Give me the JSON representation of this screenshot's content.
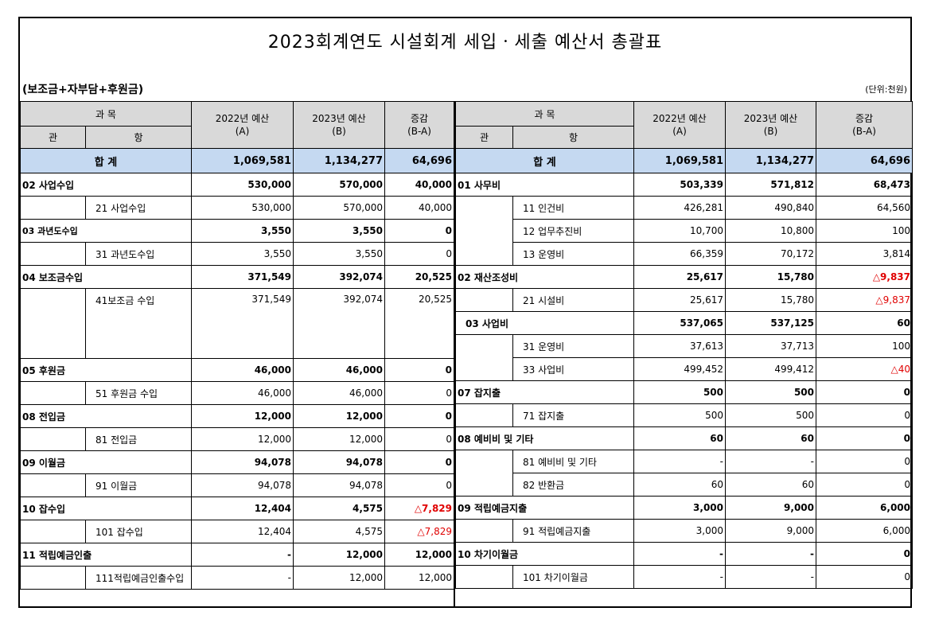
{
  "title": "2023회계연도 시설회계 세입ㆍ세출 예산서 총괄표",
  "subtitle": "(보조금+자부담+후원금)",
  "unit": "(단위:천원)",
  "headers": {
    "gwamok": "과 목",
    "gwan": "관",
    "hang": "항",
    "prev_budget": "2022년 예산",
    "prev_mark": "(A)",
    "curr_budget": "2023년 예산",
    "curr_mark": "(B)",
    "diff": "증감",
    "diff_mark": "(B-A)"
  },
  "total": {
    "label": "합 계",
    "prev": "1,069,581",
    "curr": "1,134,277",
    "diff": "64,696"
  },
  "revenue": [
    {
      "gwan": "02 사업수입",
      "prev": "530,000",
      "curr": "570,000",
      "diff": "40,000",
      "items": [
        {
          "hang": "21 사업수입",
          "prev": "530,000",
          "curr": "570,000",
          "diff": "40,000"
        }
      ]
    },
    {
      "gwan": "03 과년도수입",
      "prev": "3,550",
      "curr": "3,550",
      "diff": "0",
      "items": [
        {
          "hang": "31 과년도수입",
          "prev": "3,550",
          "curr": "3,550",
          "diff": "0"
        }
      ]
    },
    {
      "gwan": "04 보조금수입",
      "prev": "371,549",
      "curr": "392,074",
      "diff": "20,525",
      "items": [
        {
          "hang": "41보조금 수입",
          "prev": "371,549",
          "curr": "392,074",
          "diff": "20,525"
        }
      ]
    },
    {
      "gwan": "05 후원금",
      "prev": "46,000",
      "curr": "46,000",
      "diff": "0",
      "items": [
        {
          "hang": "51 후원금 수입",
          "prev": "46,000",
          "curr": "46,000",
          "diff": "0"
        }
      ]
    },
    {
      "gwan": "08 전입금",
      "prev": "12,000",
      "curr": "12,000",
      "diff": "0",
      "items": [
        {
          "hang": "81 전입금",
          "prev": "12,000",
          "curr": "12,000",
          "diff": "0"
        }
      ]
    },
    {
      "gwan": "09 이월금",
      "prev": "94,078",
      "curr": "94,078",
      "diff": "0",
      "items": [
        {
          "hang": "91 이월금",
          "prev": "94,078",
          "curr": "94,078",
          "diff": "0"
        }
      ]
    },
    {
      "gwan": "10 잡수입",
      "prev": "12,404",
      "curr": "4,575",
      "diff": "△7,829",
      "items": [
        {
          "hang": "101 잡수입",
          "prev": "12,404",
          "curr": "4,575",
          "diff": "△7,829"
        }
      ]
    },
    {
      "gwan": "11 적립예금인출",
      "prev": "-",
      "curr": "12,000",
      "diff": "12,000",
      "items": [
        {
          "hang": "111적립예금인출수입",
          "prev": "-",
          "curr": "12,000",
          "diff": "12,000"
        }
      ]
    }
  ],
  "expense": [
    {
      "gwan": "01 사무비",
      "prev": "503,339",
      "curr": "571,812",
      "diff": "68,473",
      "items": [
        {
          "hang": "11 인건비",
          "prev": "426,281",
          "curr": "490,840",
          "diff": "64,560"
        },
        {
          "hang": "12 업무추진비",
          "prev": "10,700",
          "curr": "10,800",
          "diff": "100"
        },
        {
          "hang": "13 운영비",
          "prev": "66,359",
          "curr": "70,172",
          "diff": "3,814"
        }
      ]
    },
    {
      "gwan": "02 재산조성비",
      "prev": "25,617",
      "curr": "15,780",
      "diff": "△9,837",
      "items": [
        {
          "hang": "21 시설비",
          "prev": "25,617",
          "curr": "15,780",
          "diff": "△9,837"
        }
      ]
    },
    {
      "gwan": "03 사업비",
      "prev": "537,065",
      "curr": "537,125",
      "diff": "60",
      "items": [
        {
          "hang": "31 운영비",
          "prev": "37,613",
          "curr": "37,713",
          "diff": "100"
        },
        {
          "hang": "33 사업비",
          "prev": "499,452",
          "curr": "499,412",
          "diff": "△40"
        }
      ]
    },
    {
      "gwan": "07 잡지출",
      "prev": "500",
      "curr": "500",
      "diff": "0",
      "items": [
        {
          "hang": "71 잡지출",
          "prev": "500",
          "curr": "500",
          "diff": "0"
        }
      ]
    },
    {
      "gwan": "08 예비비 및 기타",
      "prev": "60",
      "curr": "60",
      "diff": "0",
      "items": [
        {
          "hang": "81 예비비 및 기타",
          "prev": "-",
          "curr": "-",
          "diff": "0"
        },
        {
          "hang": "82 반환금",
          "prev": "60",
          "curr": "60",
          "diff": "0"
        }
      ]
    },
    {
      "gwan": "09 적립예금지출",
      "prev": "3,000",
      "curr": "9,000",
      "diff": "6,000",
      "items": [
        {
          "hang": "91 적립예금지출",
          "prev": "3,000",
          "curr": "9,000",
          "diff": "6,000"
        }
      ]
    },
    {
      "gwan": "10 차기이월금",
      "prev": "-",
      "curr": "-",
      "diff": "0",
      "items": [
        {
          "hang": "101 차기이월금",
          "prev": "-",
          "curr": "-",
          "diff": "0"
        }
      ]
    }
  ],
  "colors": {
    "header_bg": "#d9d9d9",
    "total_bg": "#c5d9f1",
    "negative": "#e00000"
  }
}
